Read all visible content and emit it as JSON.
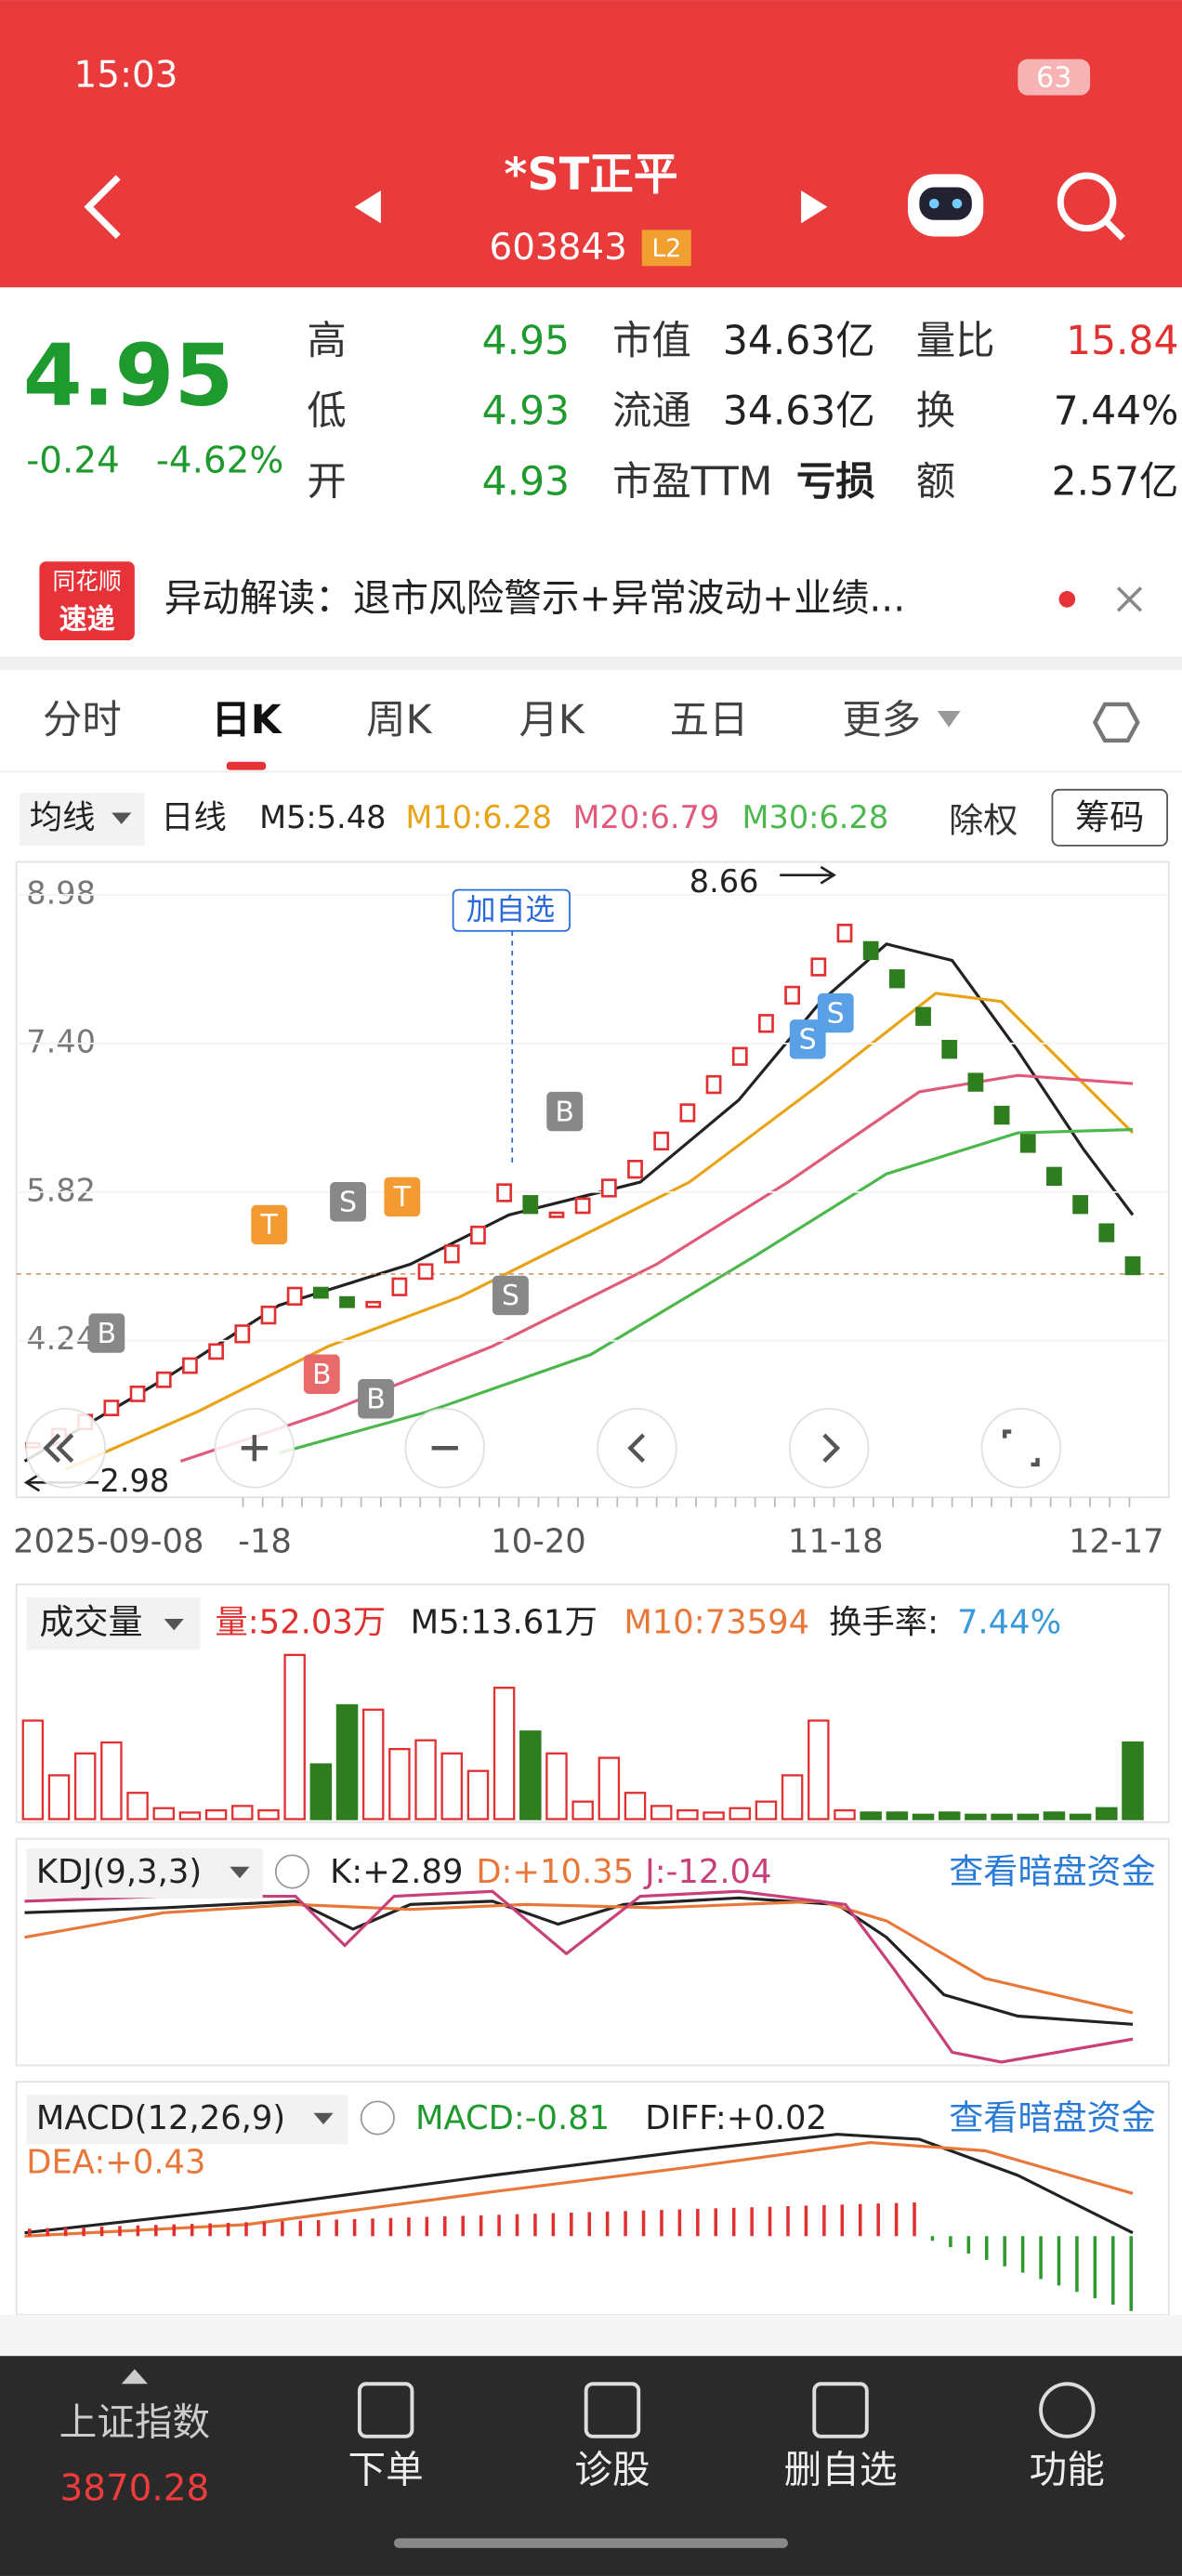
{
  "status": {
    "time": "15:03",
    "battery": "63"
  },
  "header": {
    "title": "*ST正平",
    "code": "603843",
    "level": "L2"
  },
  "quote": {
    "price": "4.95",
    "change": "-0.24",
    "change_pct": "-4.62%",
    "stats": [
      {
        "label": "高",
        "value": "4.95"
      },
      {
        "label": "低",
        "value": "4.93"
      },
      {
        "label": "开",
        "value": "4.93"
      },
      {
        "label": "市值",
        "value": "34.63亿"
      },
      {
        "label": "流通",
        "value": "34.63亿"
      },
      {
        "label": "市盈TTM",
        "value": "亏损"
      },
      {
        "label": "量比",
        "value": "15.84"
      },
      {
        "label": "换",
        "value": "7.44%"
      },
      {
        "label": "额",
        "value": "2.57亿"
      }
    ]
  },
  "banner": {
    "badge": [
      "同花顺",
      "速递"
    ],
    "text": "异动解读：退市风险警示+异常波动+业绩..."
  },
  "tabs": [
    "分时",
    "日K",
    "周K",
    "月K",
    "五日",
    "更多"
  ],
  "kline": {
    "indicator": "均线",
    "period": "日线",
    "ma": [
      "M5:5.48",
      "M10:6.28",
      "M20:6.79",
      "M30:6.28"
    ],
    "buttons": [
      "除权",
      "筹码"
    ],
    "yticks": [
      8.98,
      {
        "value": 7.4,
        "label": "7.40"
      },
      5.82,
      4.24
    ],
    "high_label": "8.66",
    "low_label": "2.98",
    "add_button": "加自选",
    "dates": [
      "2025-09-08",
      "-18",
      "10-20",
      "11-18",
      "12-17"
    ],
    "markers": [
      "T",
      "S",
      "T",
      "B",
      "B",
      "B",
      "S",
      "B",
      "S",
      "S"
    ],
    "close": [
      3.15,
      3.3,
      3.45,
      3.6,
      3.75,
      3.9,
      4.05,
      4.2,
      4.4,
      4.6,
      4.8,
      4.7,
      4.6,
      4.65,
      4.9,
      5.05,
      5.25,
      5.45,
      5.9,
      5.6,
      5.6,
      5.75,
      5.95,
      6.15,
      6.45,
      6.75,
      7.05,
      7.35,
      7.7,
      8.0,
      8.3,
      8.66,
      8.3,
      8.0,
      7.6,
      7.25,
      6.9,
      6.55,
      6.25,
      5.9,
      5.6,
      5.3,
      4.95
    ]
  },
  "volume": {
    "title": "成交量",
    "stats": [
      "量:52.03万",
      "M5:13.61万",
      "M10:73594",
      "换手率:"
    ],
    "turnover": "7.44%",
    "values": [
      45,
      20,
      30,
      35,
      12,
      5,
      3,
      4,
      6,
      4,
      75,
      25,
      52,
      50,
      32,
      36,
      30,
      22,
      60,
      40,
      30,
      8,
      28,
      12,
      6,
      4,
      3,
      5,
      8,
      20,
      45,
      4,
      3,
      3,
      2,
      3,
      2,
      2,
      2,
      3,
      2,
      5,
      35
    ]
  },
  "kdj": {
    "title": "KDJ(9,3,3)",
    "stats": [
      "K:+2.89",
      "D:+10.35",
      "J:-12.04"
    ],
    "link": "查看暗盘资金"
  },
  "macd": {
    "title": "MACD(12,26,9)",
    "stats": [
      "MACD:-0.81",
      "DIFF:+0.02",
      "DEA:+0.43"
    ],
    "link": "查看暗盘资金"
  },
  "nav": {
    "index_name": "上证指数",
    "index_value": "3870.28",
    "items": [
      "下单",
      "诊股",
      "删自选",
      "功能"
    ]
  }
}
